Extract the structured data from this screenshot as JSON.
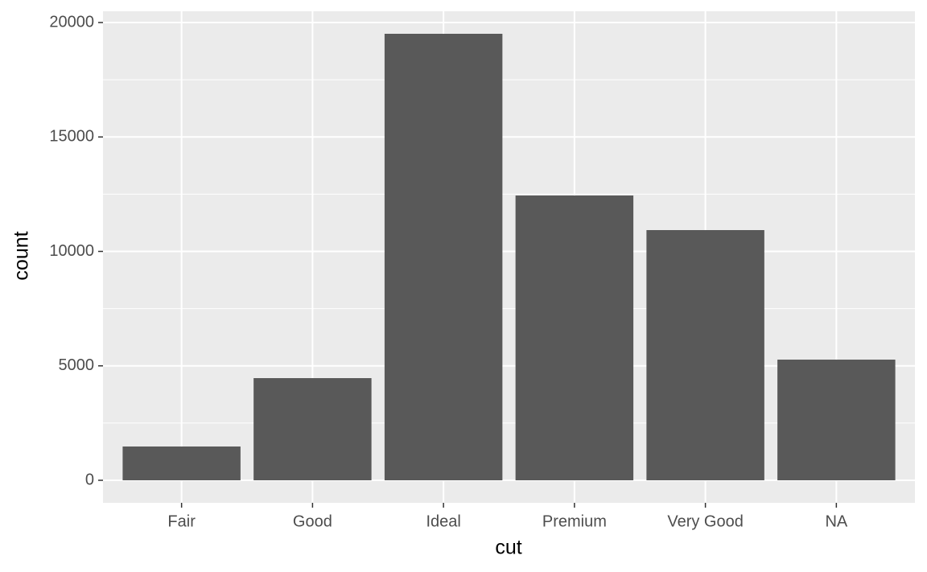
{
  "chart_data": {
    "type": "bar",
    "x_label": "cut",
    "y_label": "count",
    "categories": [
      "Fair",
      "Good",
      "Ideal",
      "Premium",
      "Very Good",
      "NA"
    ],
    "values": [
      1476,
      4464,
      19508,
      12443,
      10931,
      5272
    ],
    "color": "#595959",
    "ylim": [
      -984,
      20492
    ],
    "yticks": [
      0,
      5000,
      10000,
      15000,
      20000
    ],
    "grid": true,
    "panel_color": "#ebebeb"
  }
}
